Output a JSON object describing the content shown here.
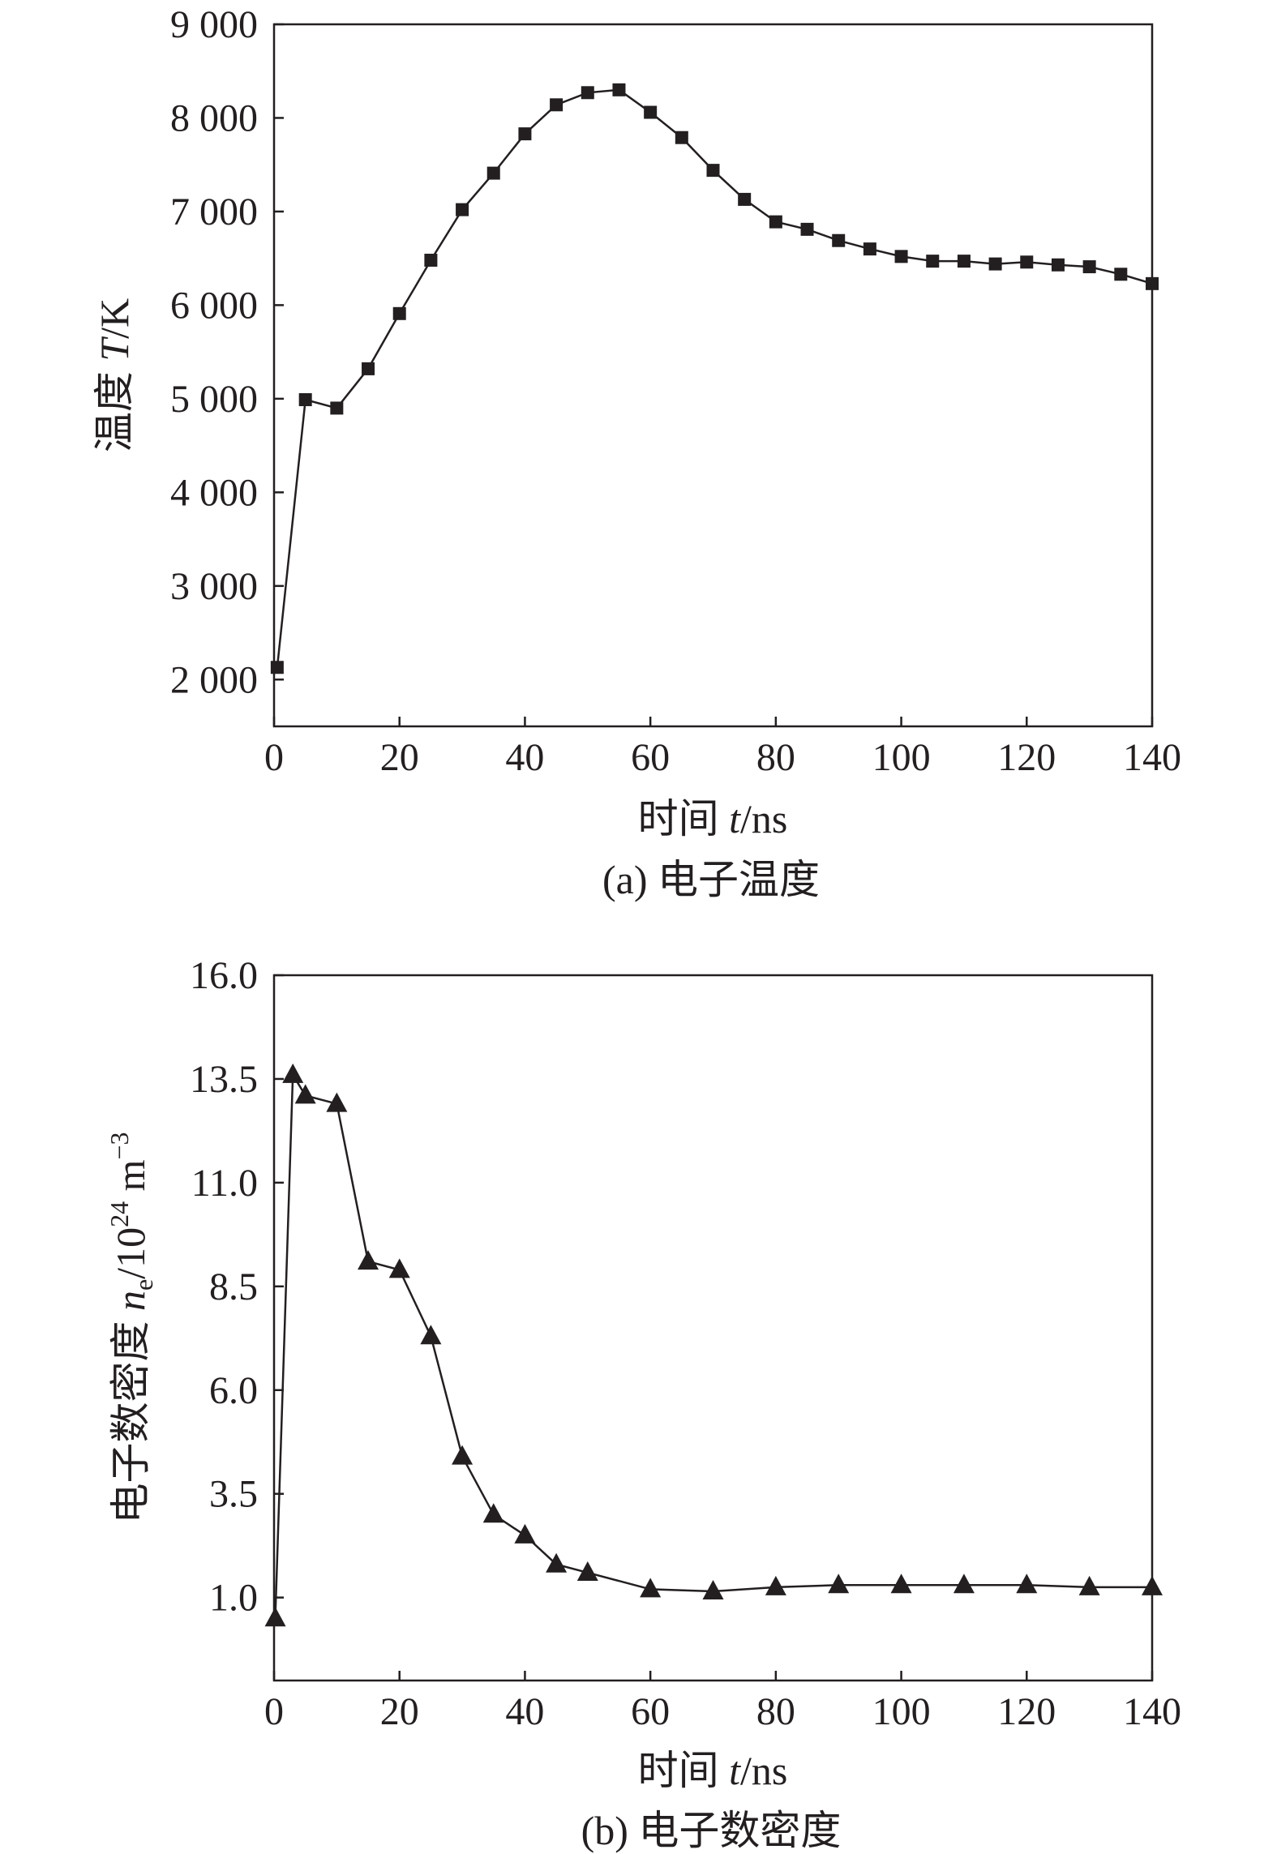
{
  "chart_data": [
    {
      "type": "line",
      "marker": "square",
      "caption": "(a) 电子温度",
      "xlabel_prefix": "时间 ",
      "xlabel_var": "t",
      "xlabel_unit": "/ns",
      "ylabel_prefix": "温度 ",
      "ylabel_var": "T",
      "ylabel_unit": "/K",
      "xlim": [
        0,
        140
      ],
      "ylim": [
        1500,
        9000
      ],
      "xticks": [
        0,
        20,
        40,
        60,
        80,
        100,
        120,
        140
      ],
      "xtick_labels": [
        "0",
        "20",
        "40",
        "60",
        "80",
        "100",
        "120",
        "140"
      ],
      "yticks": [
        2000,
        3000,
        4000,
        5000,
        6000,
        7000,
        8000,
        9000
      ],
      "ytick_labels": [
        "2 000",
        "3 000",
        "4 000",
        "5 000",
        "6 000",
        "7 000",
        "8 000",
        "9 000"
      ],
      "series": [
        {
          "x": [
            0.5,
            5,
            10,
            15,
            20,
            25,
            30,
            35,
            40,
            45,
            50,
            55,
            60,
            65,
            70,
            75,
            80,
            85,
            90,
            95,
            100,
            105,
            110,
            115,
            120,
            125,
            130,
            135,
            140
          ],
          "y": [
            2130,
            4990,
            4900,
            5320,
            5910,
            6480,
            7020,
            7410,
            7830,
            8140,
            8270,
            8300,
            8060,
            7790,
            7440,
            7130,
            6890,
            6810,
            6690,
            6600,
            6520,
            6470,
            6470,
            6440,
            6460,
            6430,
            6410,
            6330,
            6230
          ]
        }
      ]
    },
    {
      "type": "line",
      "marker": "triangle",
      "caption": "(b) 电子数密度",
      "xlabel_prefix": "时间 ",
      "xlabel_var": "t",
      "xlabel_unit": "/ns",
      "ylabel_prefix": "电子数密度 ",
      "ylabel_var": "n",
      "ylabel_sub": "e",
      "ylabel_unit1": "/10",
      "ylabel_sup1": "24",
      "ylabel_unit2": " m",
      "ylabel_sup2": "−3",
      "xlim": [
        0,
        140
      ],
      "ylim": [
        -1.0,
        16.0
      ],
      "xticks": [
        0,
        20,
        40,
        60,
        80,
        100,
        120,
        140
      ],
      "xtick_labels": [
        "0",
        "20",
        "40",
        "60",
        "80",
        "100",
        "120",
        "140"
      ],
      "yticks": [
        1.0,
        3.5,
        6.0,
        8.5,
        11.0,
        13.5,
        16.0
      ],
      "ytick_labels": [
        "1.0",
        "3.5",
        "6.0",
        "8.5",
        "11.0",
        "13.5",
        "16.0"
      ],
      "series": [
        {
          "x": [
            0.2,
            3,
            5,
            10,
            15,
            20,
            25,
            30,
            35,
            40,
            45,
            50,
            60,
            70,
            80,
            90,
            100,
            110,
            120,
            130,
            140
          ],
          "y": [
            0.5,
            13.6,
            13.1,
            12.9,
            9.1,
            8.9,
            7.3,
            4.4,
            3.0,
            2.5,
            1.8,
            1.6,
            1.2,
            1.15,
            1.25,
            1.3,
            1.3,
            1.3,
            1.3,
            1.25,
            1.25
          ]
        }
      ]
    }
  ]
}
